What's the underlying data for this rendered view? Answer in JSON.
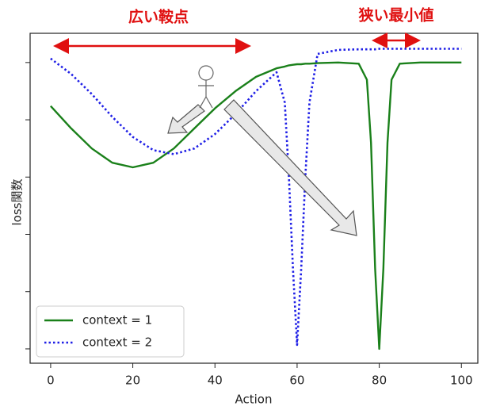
{
  "chart_data": {
    "type": "line",
    "annotations": [
      "広い鞍点",
      "狭い最小値"
    ],
    "x_label": "Action",
    "y_label": "loss関数",
    "x": [
      0,
      5,
      10,
      15,
      20,
      25,
      30,
      35,
      40,
      45,
      50,
      55,
      57,
      58,
      59,
      60,
      61,
      62,
      63,
      65,
      70,
      75,
      77,
      78,
      79,
      80,
      81,
      82,
      83,
      85,
      90,
      95,
      100
    ],
    "series": [
      {
        "name": "context = 1",
        "color": "#1a801a",
        "style": "solid",
        "values": [
          4.24,
          3.85,
          3.5,
          3.25,
          3.17,
          3.25,
          3.5,
          3.85,
          4.2,
          4.5,
          4.75,
          4.9,
          4.93,
          4.95,
          4.96,
          4.97,
          4.97,
          4.98,
          4.98,
          4.99,
          5.0,
          4.98,
          4.7,
          3.6,
          1.4,
          0,
          1.4,
          3.6,
          4.7,
          4.98,
          5.0,
          5.0,
          5.0
        ]
      },
      {
        "name": "context = 2",
        "color": "#1f1fe6",
        "style": "dotted",
        "values": [
          5.07,
          4.8,
          4.45,
          4.05,
          3.7,
          3.47,
          3.4,
          3.5,
          3.75,
          4.1,
          4.5,
          4.83,
          4.3,
          3.0,
          1.4,
          0.07,
          1.4,
          3.0,
          4.3,
          5.15,
          5.22,
          5.23,
          5.23,
          5.23,
          5.23,
          5.24,
          5.24,
          5.24,
          5.24,
          5.24,
          5.24,
          5.24,
          5.24
        ]
      }
    ],
    "xlim": [
      -5,
      104
    ],
    "xticks": [
      0,
      20,
      40,
      60,
      80,
      100
    ],
    "ylim": [
      -0.25,
      5.51
    ],
    "yticks": [
      0,
      1,
      2,
      3,
      4,
      5
    ],
    "legend": "lower left"
  }
}
